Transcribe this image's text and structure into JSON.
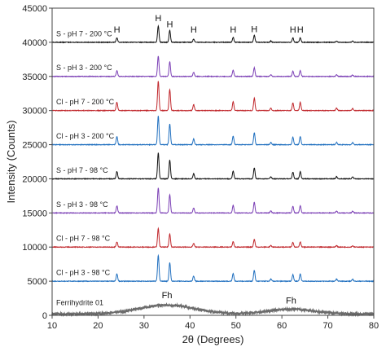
{
  "chart_data": {
    "type": "line",
    "xlabel": "2θ (Degrees)",
    "ylabel": "Intensity (Counts)",
    "xlim": [
      10,
      80
    ],
    "ylim": [
      0,
      45000
    ],
    "x_ticks": [
      10,
      20,
      30,
      40,
      50,
      60,
      70,
      80
    ],
    "y_ticks": [
      0,
      5000,
      10000,
      15000,
      20000,
      25000,
      30000,
      35000,
      40000,
      45000
    ],
    "grid": false,
    "legend": "none",
    "peak_markers": {
      "hematite": {
        "label": "H",
        "positions_2theta": [
          24.1,
          33.1,
          35.6,
          40.8,
          49.4,
          54.0,
          62.4,
          64.0
        ],
        "relative_intensity": [
          0.28,
          1.0,
          0.72,
          0.2,
          0.3,
          0.42,
          0.26,
          0.28
        ]
      },
      "minor_positions_2theta": [
        57.6,
        71.9,
        75.4
      ],
      "minor_relative_intensity": [
        0.08,
        0.08,
        0.07
      ]
    },
    "fh_annotations": [
      {
        "label": "Fh",
        "x": 35.0,
        "y": 1800
      },
      {
        "label": "Fh",
        "x": 62.0,
        "y": 1000
      }
    ],
    "series": [
      {
        "name": "Ferrihydrite 01",
        "color": "#6b6b6b",
        "baseline": 200,
        "peak_max": 0,
        "broad_humps": [
          {
            "center": 35,
            "width": 6,
            "height": 1300
          },
          {
            "center": 62,
            "width": 5,
            "height": 700
          }
        ]
      },
      {
        "name": "Cl - pH 3 - 98 °C",
        "color": "#1f6fbf",
        "baseline": 5000,
        "peak_max": 3800
      },
      {
        "name": "Cl - pH 7 - 98 °C",
        "color": "#c0262b",
        "baseline": 10000,
        "peak_max": 2700
      },
      {
        "name": "S - pH 3 - 98 °C",
        "color": "#7b3fb5",
        "baseline": 15000,
        "peak_max": 3700
      },
      {
        "name": "S - pH 7 - 98 °C",
        "color": "#111111",
        "baseline": 20000,
        "peak_max": 3800
      },
      {
        "name": "Cl - pH 3 - 200 °C",
        "color": "#1f6fbf",
        "baseline": 25000,
        "peak_max": 4200
      },
      {
        "name": "Cl - pH 7 - 200 °C",
        "color": "#c0262b",
        "baseline": 30000,
        "peak_max": 4300
      },
      {
        "name": "S - pH 3 - 200 °C",
        "color": "#7b3fb5",
        "baseline": 35000,
        "peak_max": 3000
      },
      {
        "name": "S - pH 7 - 200 °C",
        "color": "#111111",
        "baseline": 40000,
        "peak_max": 2400
      }
    ]
  }
}
